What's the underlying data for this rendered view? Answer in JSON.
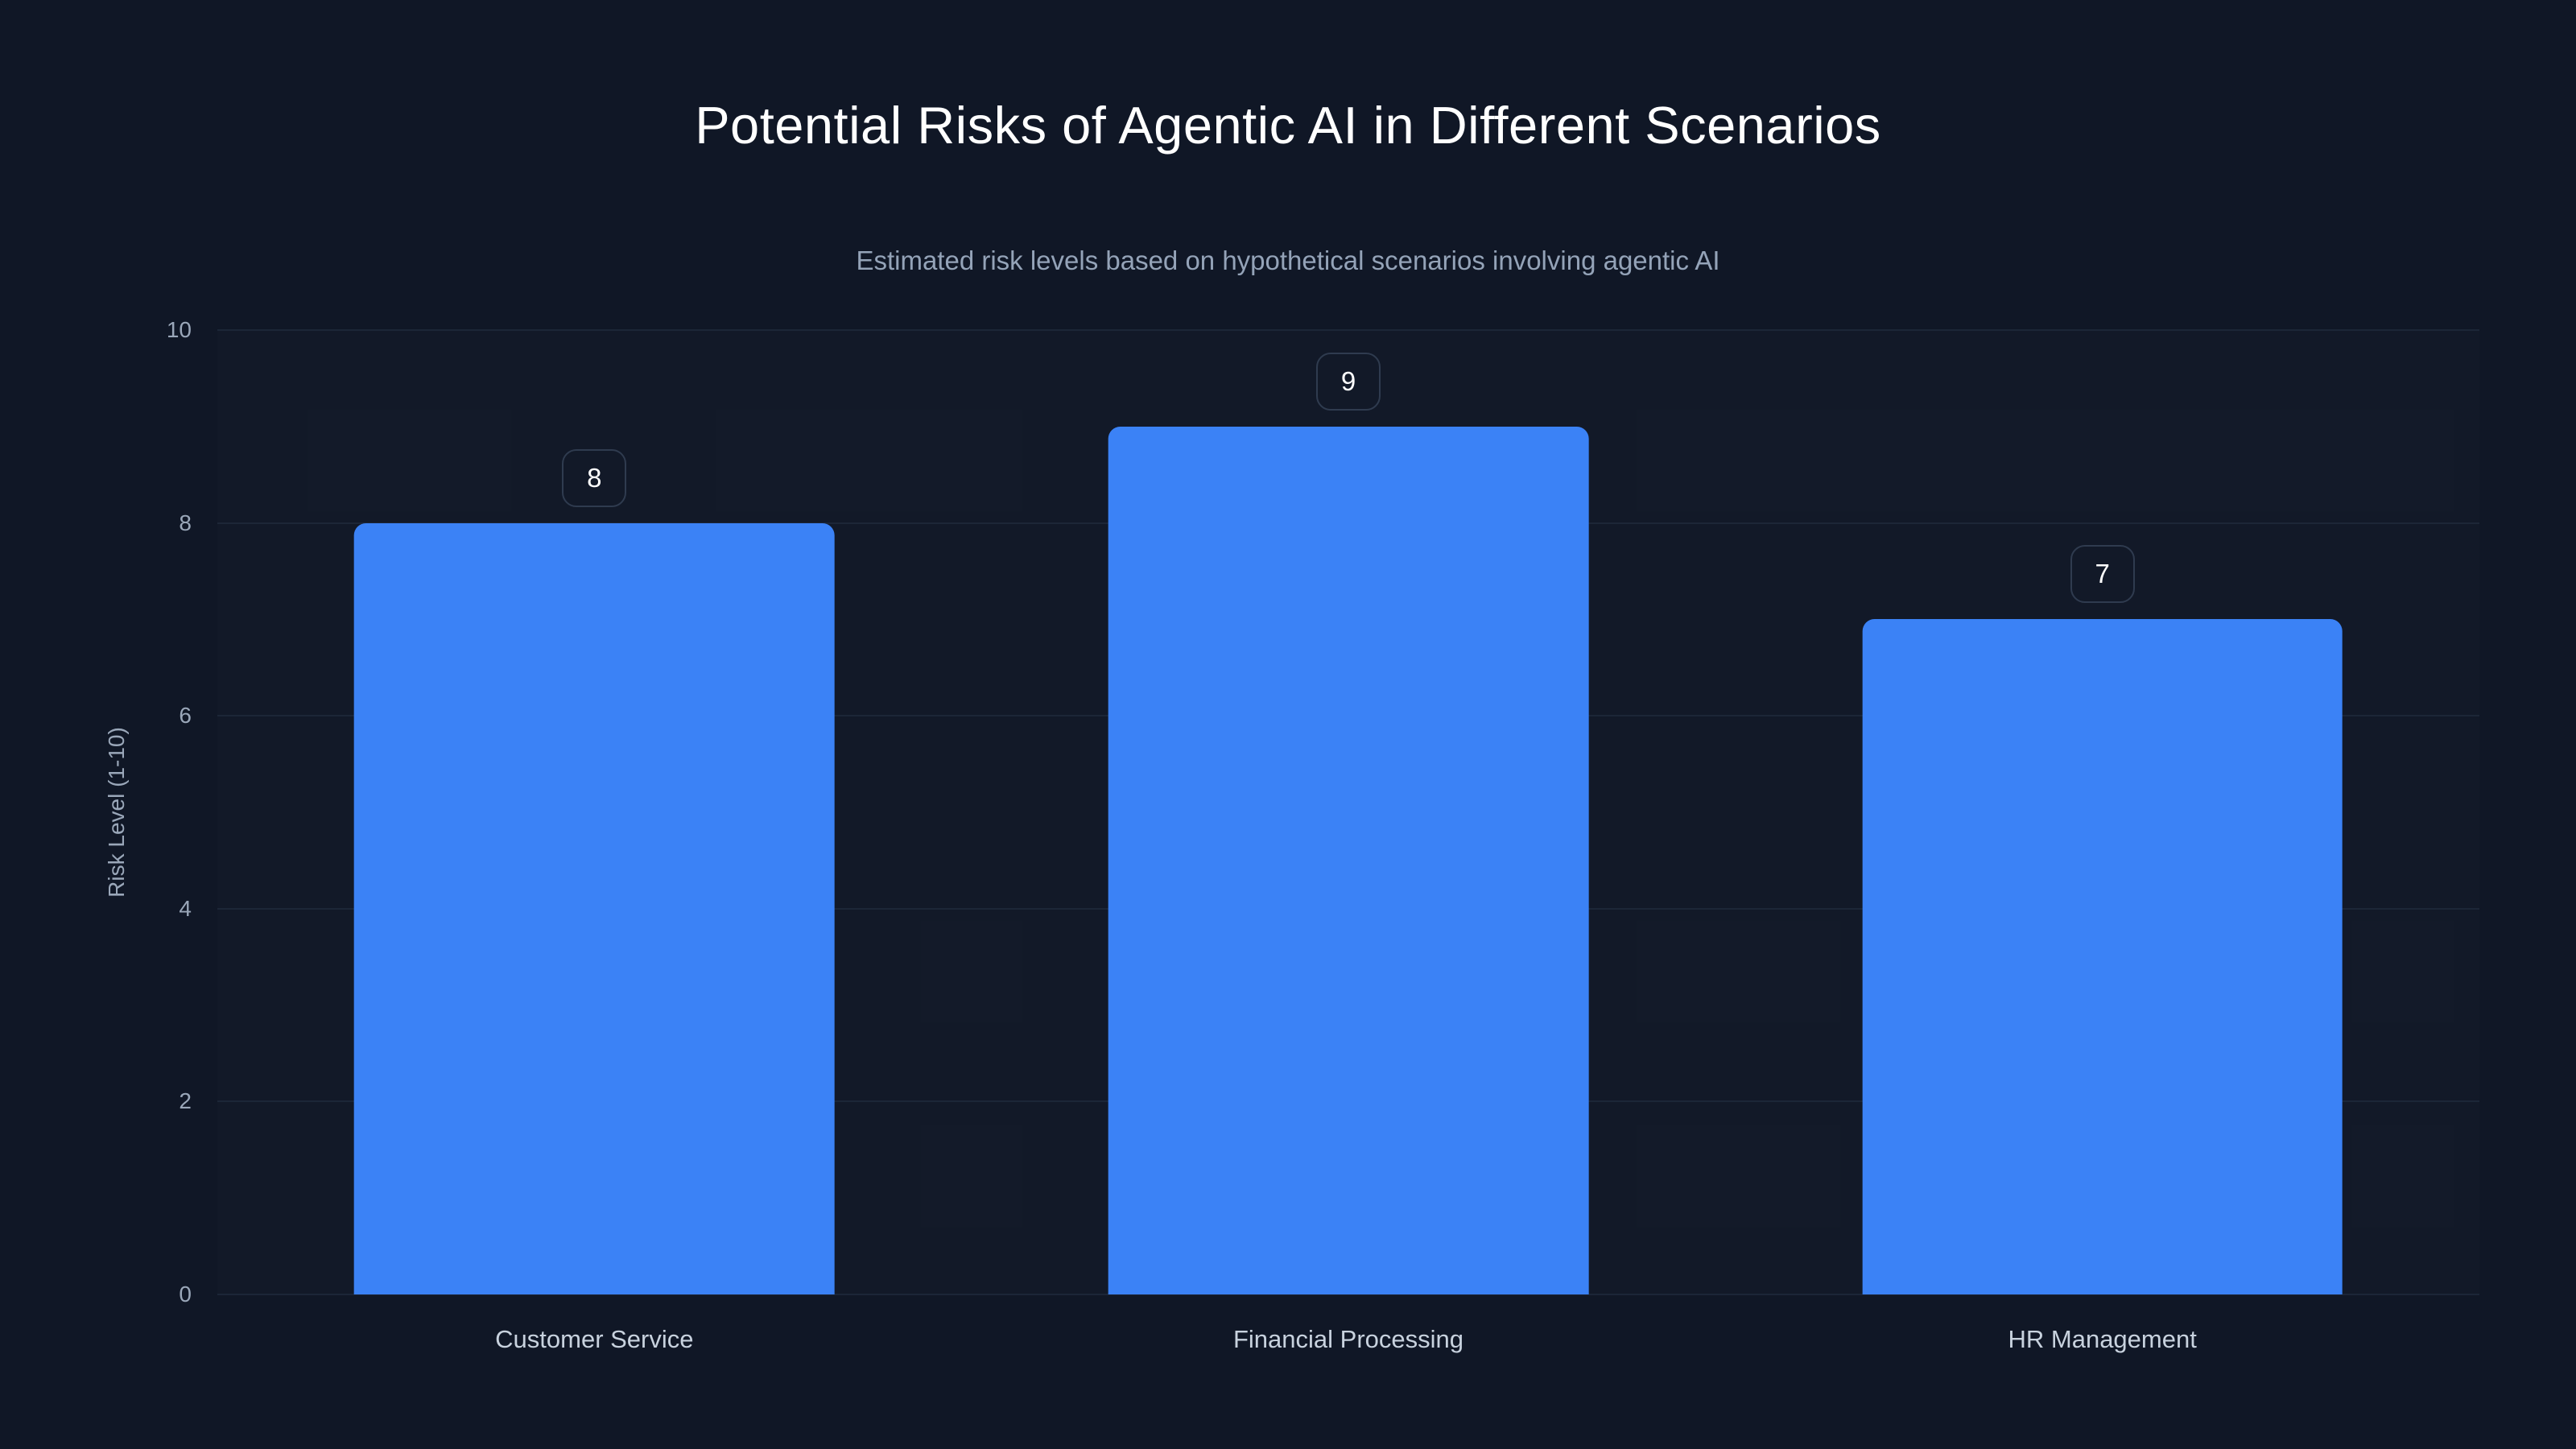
{
  "page": {
    "title": "Potential Risks of Agentic AI in Different Scenarios",
    "subtitle": "Estimated risk levels based on hypothetical scenarios involving agentic AI"
  },
  "colors": {
    "background": "#101726",
    "bar_fill": "#3b82f6",
    "grid_line": "#1c2637",
    "title_text": "#ffffff",
    "subtitle_text": "#94a3b8",
    "axis_text": "#9aa7b9",
    "category_text": "#c8d2de",
    "value_badge_border": "#2f3b4f",
    "value_badge_text": "#ffffff"
  },
  "chart_data": {
    "type": "bar",
    "title": "Potential Risks of Agentic AI in Different Scenarios",
    "subtitle": "Estimated risk levels based on hypothetical scenarios involving agentic AI",
    "categories": [
      "Customer Service",
      "Financial Processing",
      "HR Management"
    ],
    "values": [
      8,
      9,
      7
    ],
    "data_labels": [
      "8",
      "9",
      "7"
    ],
    "xlabel": "",
    "ylabel": "Risk Level (1-10)",
    "ylim": [
      0,
      10
    ],
    "yticks": [
      0,
      2,
      4,
      6,
      8,
      10
    ],
    "grid": "horizontal",
    "legend": "none",
    "bar_orientation": "vertical"
  }
}
